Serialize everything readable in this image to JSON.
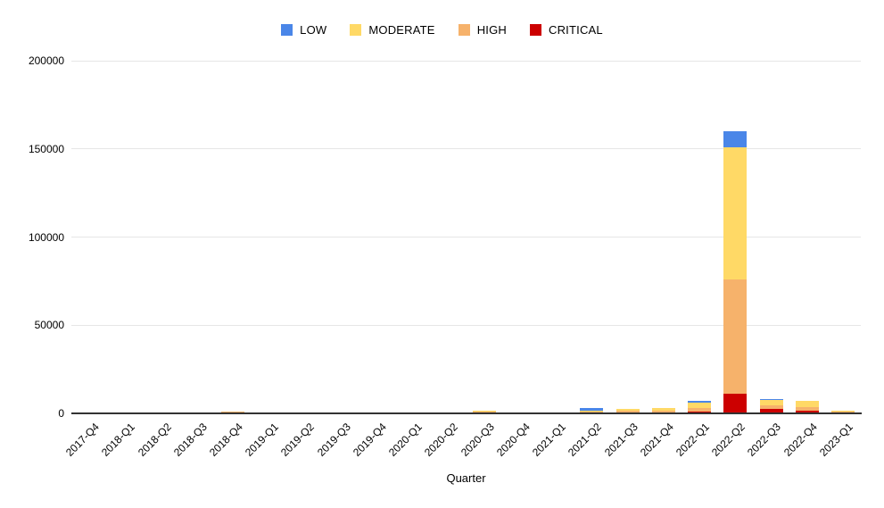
{
  "chart_data": {
    "type": "bar",
    "stacked": true,
    "title": "",
    "xlabel": "Quarter",
    "ylabel": "",
    "ylim": [
      0,
      200000
    ],
    "yticks": [
      0,
      50000,
      100000,
      150000,
      200000
    ],
    "grid": true,
    "legend_position": "top",
    "stack_order_bottom_to_top": [
      "CRITICAL",
      "HIGH",
      "MODERATE",
      "LOW"
    ],
    "categories": [
      "2017-Q4",
      "2018-Q1",
      "2018-Q2",
      "2018-Q3",
      "2018-Q4",
      "2019-Q1",
      "2019-Q2",
      "2019-Q3",
      "2019-Q4",
      "2020-Q1",
      "2020-Q2",
      "2020-Q3",
      "2020-Q4",
      "2021-Q1",
      "2021-Q2",
      "2021-Q3",
      "2021-Q4",
      "2022-Q1",
      "2022-Q2",
      "2022-Q3",
      "2022-Q4",
      "2023-Q1"
    ],
    "series": [
      {
        "name": "LOW",
        "color": "#4a86e8",
        "values": [
          0,
          0,
          0,
          0,
          0,
          0,
          0,
          0,
          0,
          0,
          0,
          0,
          0,
          0,
          1500,
          0,
          0,
          1000,
          9000,
          800,
          0,
          0
        ]
      },
      {
        "name": "MODERATE",
        "color": "#ffd966",
        "values": [
          300,
          100,
          100,
          200,
          200,
          200,
          150,
          100,
          150,
          150,
          100,
          600,
          150,
          250,
          500,
          1000,
          1300,
          3000,
          75000,
          3000,
          3500,
          700
        ]
      },
      {
        "name": "HIGH",
        "color": "#f6b26b",
        "values": [
          300,
          100,
          100,
          300,
          400,
          200,
          150,
          100,
          200,
          200,
          200,
          300,
          200,
          400,
          400,
          800,
          1100,
          2000,
          65000,
          2000,
          2000,
          400
        ]
      },
      {
        "name": "CRITICAL",
        "color": "#cc0000",
        "values": [
          0,
          0,
          0,
          0,
          500,
          100,
          100,
          0,
          100,
          100,
          100,
          600,
          100,
          100,
          600,
          700,
          600,
          1000,
          11000,
          2500,
          1500,
          400
        ]
      }
    ]
  },
  "colors": {
    "background": "#ffffff",
    "gridline": "#e6e6e6",
    "axis_line": "#333333",
    "tick_text": "#000000"
  }
}
